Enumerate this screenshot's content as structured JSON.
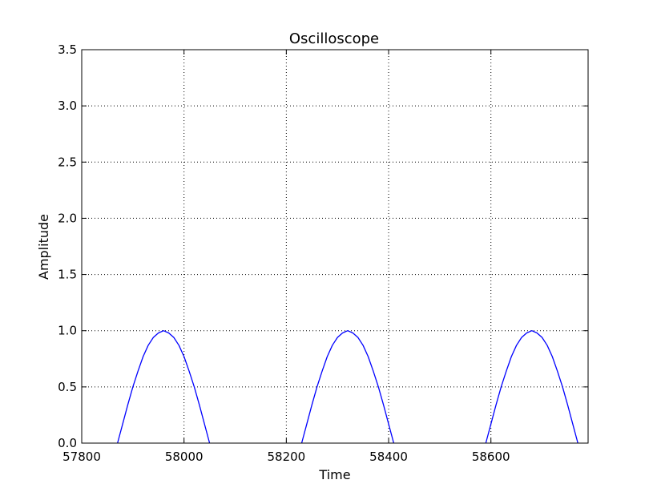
{
  "chart_data": {
    "type": "line",
    "title": "Oscilloscope",
    "xlabel": "Time",
    "ylabel": "Amplitude",
    "xlim": [
      57800,
      58790
    ],
    "ylim": [
      0.0,
      3.5
    ],
    "grid": true,
    "legend": "none",
    "x_ticks": [
      57800,
      58000,
      58200,
      58400,
      58600
    ],
    "x_tick_labels": [
      "57800",
      "58000",
      "58200",
      "58400",
      "58600"
    ],
    "y_ticks": [
      0.0,
      0.5,
      1.0,
      1.5,
      2.0,
      2.5,
      3.0,
      3.5
    ],
    "y_tick_labels": [
      "0.0",
      "0.5",
      "1.0",
      "1.5",
      "2.0",
      "2.5",
      "3.0",
      "3.5"
    ],
    "series": [
      {
        "color": "#0000ff",
        "segments": [
          {
            "x": [
              57870,
              57880,
              57890,
              57900,
              57910,
              57920,
              57930,
              57940,
              57950,
              57960,
              57970,
              57980,
              57990,
              58000,
              58010,
              58020,
              58030,
              58040,
              58050
            ],
            "y": [
              0.0,
              0.17,
              0.34,
              0.5,
              0.64,
              0.77,
              0.87,
              0.94,
              0.98,
              1.0,
              0.98,
              0.94,
              0.87,
              0.77,
              0.64,
              0.5,
              0.34,
              0.17,
              0.0
            ]
          },
          {
            "x": [
              58230,
              58240,
              58250,
              58260,
              58270,
              58280,
              58290,
              58300,
              58310,
              58320,
              58330,
              58340,
              58350,
              58360,
              58370,
              58380,
              58390,
              58400,
              58410
            ],
            "y": [
              0.0,
              0.17,
              0.34,
              0.5,
              0.64,
              0.77,
              0.87,
              0.94,
              0.98,
              1.0,
              0.98,
              0.94,
              0.87,
              0.77,
              0.64,
              0.5,
              0.34,
              0.17,
              0.0
            ]
          },
          {
            "x": [
              58590,
              58600,
              58610,
              58620,
              58630,
              58640,
              58650,
              58660,
              58670,
              58680,
              58690,
              58700,
              58710,
              58720,
              58730,
              58740,
              58750,
              58760,
              58770
            ],
            "y": [
              0.0,
              0.17,
              0.34,
              0.5,
              0.64,
              0.77,
              0.87,
              0.94,
              0.98,
              1.0,
              0.98,
              0.94,
              0.87,
              0.77,
              0.64,
              0.5,
              0.34,
              0.17,
              0.0
            ]
          }
        ]
      }
    ]
  }
}
